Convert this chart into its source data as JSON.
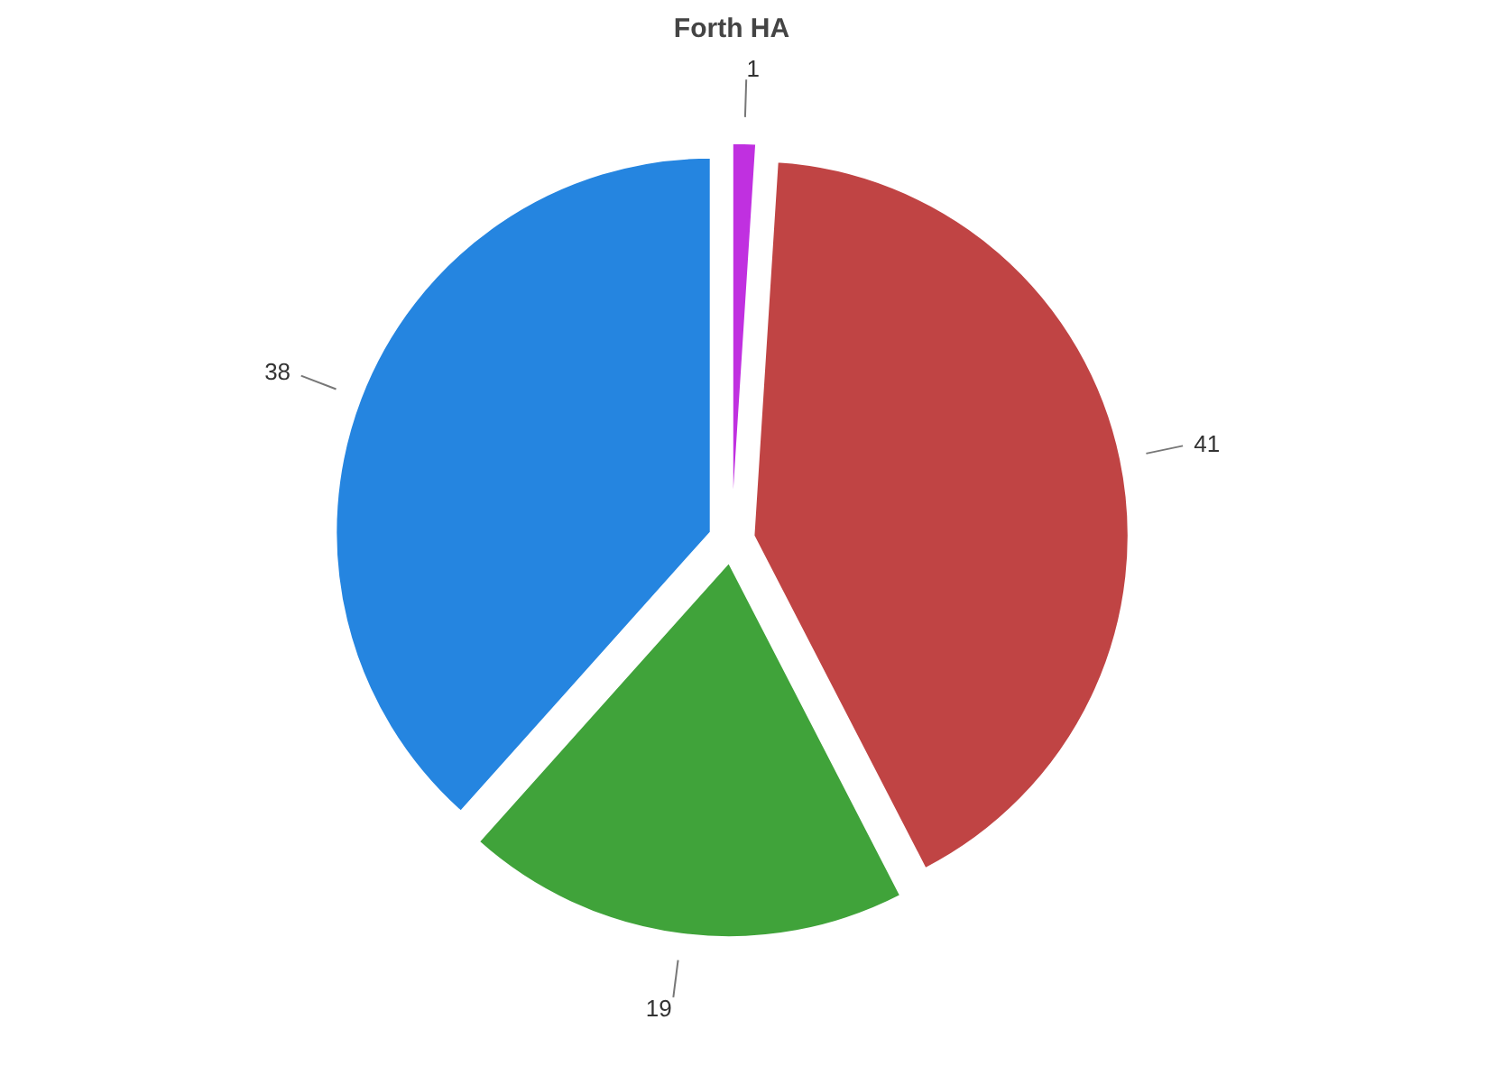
{
  "chart_data": {
    "type": "pie",
    "title": "Forth HA",
    "categories": [
      null,
      null,
      null,
      null
    ],
    "values": [
      1,
      41,
      19,
      38
    ],
    "colors": [
      "#c030e0",
      "#c04444",
      "#40a33a",
      "#2585e0"
    ],
    "data_labels": true
  }
}
